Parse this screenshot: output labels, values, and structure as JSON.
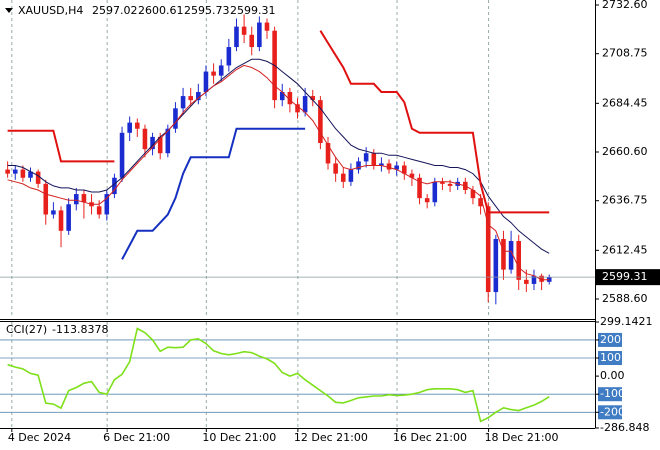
{
  "chart_data": [
    {
      "type": "candlestick",
      "symbol": "XAUUSD,H4",
      "bull_color": "#1a2bd0",
      "bear_color": "#e8201c",
      "xlim": [
        -1,
        77
      ],
      "ylim": [
        2579.3,
        2735.05
      ],
      "yticks": [
        {
          "value": 2732.6,
          "label": "2732.60"
        },
        2708.75,
        2684.45,
        {
          "value": 2660.6,
          "label": "2660.60"
        },
        2636.75,
        2612.45,
        {
          "value": 2588.6,
          "label": "2588.60"
        }
      ],
      "ohlc": [
        [
          2652,
          2656,
          2648,
          2650
        ],
        [
          2650,
          2654,
          2647,
          2652
        ],
        [
          2652,
          2654,
          2646,
          2648
        ],
        [
          2648,
          2653,
          2646,
          2651
        ],
        [
          2651,
          2652,
          2643,
          2645
        ],
        [
          2645,
          2647,
          2625,
          2630
        ],
        [
          2630,
          2636,
          2628,
          2632
        ],
        [
          2632,
          2634,
          2614,
          2622
        ],
        [
          2622,
          2638,
          2620,
          2635
        ],
        [
          2635,
          2643,
          2632,
          2640
        ],
        [
          2640,
          2642,
          2628,
          2636
        ],
        [
          2636,
          2640,
          2630,
          2634
        ],
        [
          2634,
          2637,
          2628,
          2630
        ],
        [
          2630,
          2642,
          2627,
          2640
        ],
        [
          2640,
          2650,
          2638,
          2648
        ],
        [
          2648,
          2673,
          2646,
          2670
        ],
        [
          2670,
          2678,
          2666,
          2675
        ],
        [
          2675,
          2677,
          2668,
          2672
        ],
        [
          2672,
          2674,
          2658,
          2662
        ],
        [
          2662,
          2670,
          2659,
          2668
        ],
        [
          2668,
          2670,
          2657,
          2660
        ],
        [
          2660,
          2674,
          2658,
          2672
        ],
        [
          2672,
          2685,
          2670,
          2682
        ],
        [
          2682,
          2692,
          2679,
          2688
        ],
        [
          2688,
          2692,
          2683,
          2686
        ],
        [
          2686,
          2694,
          2684,
          2690
        ],
        [
          2690,
          2703,
          2688,
          2700
        ],
        [
          2700,
          2704,
          2694,
          2698
        ],
        [
          2698,
          2706,
          2695,
          2703
        ],
        [
          2703,
          2716,
          2700,
          2712
        ],
        [
          2712,
          2726,
          2710,
          2722
        ],
        [
          2722,
          2728,
          2714,
          2718
        ],
        [
          2718,
          2722,
          2708,
          2712
        ],
        [
          2712,
          2727,
          2710,
          2724
        ],
        [
          2724,
          2726,
          2716,
          2720
        ],
        [
          2720,
          2722,
          2682,
          2686
        ],
        [
          2686,
          2694,
          2683,
          2690
        ],
        [
          2690,
          2692,
          2680,
          2684
        ],
        [
          2684,
          2687,
          2677,
          2680
        ],
        [
          2680,
          2692,
          2678,
          2688
        ],
        [
          2688,
          2691,
          2683,
          2686
        ],
        [
          2686,
          2688,
          2662,
          2665
        ],
        [
          2665,
          2668,
          2652,
          2655
        ],
        [
          2655,
          2658,
          2646,
          2650
        ],
        [
          2650,
          2653,
          2643,
          2646
        ],
        [
          2646,
          2655,
          2644,
          2652
        ],
        [
          2652,
          2658,
          2650,
          2656
        ],
        [
          2656,
          2663,
          2653,
          2660
        ],
        [
          2660,
          2662,
          2652,
          2654
        ],
        [
          2654,
          2658,
          2651,
          2655
        ],
        [
          2655,
          2657,
          2650,
          2652
        ],
        [
          2652,
          2656,
          2649,
          2654
        ],
        [
          2654,
          2656,
          2647,
          2650
        ],
        [
          2650,
          2652,
          2644,
          2648
        ],
        [
          2648,
          2650,
          2635,
          2638
        ],
        [
          2638,
          2640,
          2633,
          2636
        ],
        [
          2636,
          2648,
          2634,
          2646
        ],
        [
          2646,
          2648,
          2642,
          2645
        ],
        [
          2645,
          2647,
          2641,
          2644
        ],
        [
          2644,
          2648,
          2642,
          2646
        ],
        [
          2646,
          2648,
          2640,
          2642
        ],
        [
          2642,
          2644,
          2635,
          2638
        ],
        [
          2638,
          2640,
          2630,
          2634
        ],
        [
          2634,
          2636,
          2587,
          2592
        ],
        [
          2592,
          2620,
          2586,
          2618
        ],
        [
          2618,
          2622,
          2598,
          2603
        ],
        [
          2603,
          2622,
          2601,
          2617
        ],
        [
          2617,
          2620,
          2593,
          2598
        ],
        [
          2598,
          2603,
          2592,
          2596
        ],
        [
          2596,
          2603,
          2593,
          2600
        ],
        [
          2600,
          2601,
          2593,
          2597.02
        ],
        [
          2597.02,
          2600.61,
          2595.73,
          2599.31
        ]
      ],
      "overlays": [
        {
          "color": "#14145a",
          "width": 1,
          "values": [
            2654,
            2654,
            2653,
            2651,
            2649,
            2646,
            2644,
            2643,
            2643,
            2642,
            2642,
            2641,
            2641,
            2642,
            2645,
            2648,
            2652,
            2656,
            2660,
            2664,
            2668,
            2671,
            2675,
            2679,
            2683,
            2687,
            2690,
            2693,
            2696,
            2699,
            2702,
            2704,
            2706,
            2706,
            2705,
            2703,
            2700,
            2697,
            2694,
            2690,
            2686,
            2682,
            2677,
            2672,
            2668,
            2664,
            2662,
            2661,
            2660,
            2660,
            2659,
            2659,
            2658,
            2657,
            2656,
            2655,
            2654,
            2654,
            2653,
            2653,
            2652,
            2650,
            2646,
            2639,
            2634,
            2629,
            2626,
            2622,
            2619,
            2616,
            2613,
            2611
          ]
        },
        {
          "color": "#d42020",
          "width": 1,
          "values": [
            2647,
            2646,
            2645,
            2643,
            2642,
            2640,
            2639,
            2638,
            2637,
            2637,
            2636,
            2635,
            2635,
            2638,
            2642,
            2647,
            2651,
            2655,
            2659,
            2663,
            2667,
            2671,
            2675,
            2680,
            2684,
            2687,
            2690,
            2693,
            2695,
            2698,
            2701,
            2703,
            2702,
            2700,
            2697,
            2693,
            2690,
            2686,
            2683,
            2680,
            2676,
            2670,
            2664,
            2658,
            2653,
            2652,
            2653,
            2654,
            2654,
            2654,
            2653,
            2652,
            2650,
            2648,
            2646,
            2645,
            2646,
            2646,
            2646,
            2645,
            2644,
            2642,
            2639,
            2625,
            2622,
            2612,
            2612,
            2604,
            2601,
            2600,
            2598,
            2598
          ]
        },
        {
          "color": "#e01010",
          "width": 2,
          "values": [
            2671,
            2671,
            2671,
            2671,
            2671,
            2671,
            2671,
            2656,
            2656,
            2656,
            2656,
            2656,
            2656,
            2656,
            2656,
            null,
            null,
            null,
            null,
            null,
            null,
            null,
            null,
            null,
            null,
            null,
            null,
            null,
            null,
            null,
            null,
            null,
            null,
            null,
            null,
            null,
            null,
            null,
            null,
            null,
            null,
            2720,
            2714,
            2708,
            2702,
            2694,
            2694,
            2694,
            2694,
            2690,
            2690,
            2690,
            2685,
            2672,
            2670,
            2670,
            2670,
            2670,
            2670,
            2670,
            2670,
            2670,
            2645,
            2631,
            2631,
            2631,
            2631,
            2631,
            2631,
            2631,
            2631,
            2631
          ]
        },
        {
          "color": "#1530c0",
          "width": 2,
          "values": [
            null,
            null,
            null,
            null,
            null,
            null,
            null,
            null,
            null,
            null,
            null,
            null,
            null,
            null,
            null,
            2608,
            2615,
            2622,
            2622,
            2622,
            2626,
            2630,
            2638,
            2650,
            2658,
            2658,
            2658,
            2658,
            2658,
            2658,
            2672,
            2672,
            2672,
            2672,
            2672,
            2672,
            2672,
            2672,
            2672,
            2672,
            null,
            null,
            null,
            null,
            null,
            null,
            null,
            null,
            null,
            null,
            null,
            null,
            null,
            null,
            null,
            null,
            null,
            null,
            null,
            null,
            null,
            null,
            null,
            null,
            null,
            null,
            null,
            null,
            null,
            null,
            null,
            null
          ]
        }
      ]
    },
    {
      "type": "line",
      "title": "CCI(27)",
      "xlim": [
        -1,
        77
      ],
      "ylim": [
        -286.848,
        299.1421
      ],
      "yticks": [
        299.1421,
        200,
        100,
        {
          "value": 0,
          "label": "0.00"
        },
        -100,
        -200,
        -286.848
      ],
      "xticks": [
        {
          "value": -0.5,
          "label": "4 Dec 2024"
        },
        {
          "value": 12,
          "label": "6 Dec 21:00"
        },
        {
          "value": 25,
          "label": "10 Dec 21:00"
        },
        {
          "value": 37,
          "label": "12 Dec 21:00"
        },
        {
          "value": 50,
          "label": "16 Dec 21:00"
        },
        {
          "value": 62,
          "label": "18 Dec 21:00"
        }
      ],
      "series": [
        {
          "color": "#7ee01a",
          "values": [
            63,
            50,
            40,
            15,
            5,
            -150,
            -155,
            -177,
            -80,
            -63,
            -40,
            -30,
            -90,
            -100,
            -20,
            10,
            80,
            263,
            240,
            200,
            137,
            160,
            157,
            160,
            200,
            206,
            180,
            140,
            125,
            118,
            125,
            135,
            130,
            110,
            95,
            70,
            20,
            0,
            15,
            -20,
            -50,
            -80,
            -110,
            -145,
            -148,
            -135,
            -120,
            -115,
            -110,
            -110,
            -103,
            -108,
            -105,
            -100,
            -90,
            -75,
            -70,
            -70,
            -70,
            -75,
            -90,
            -80,
            -250,
            -230,
            -200,
            -175,
            -185,
            -190,
            -175,
            -160,
            -140,
            -113.8378
          ]
        }
      ]
    }
  ]
}
